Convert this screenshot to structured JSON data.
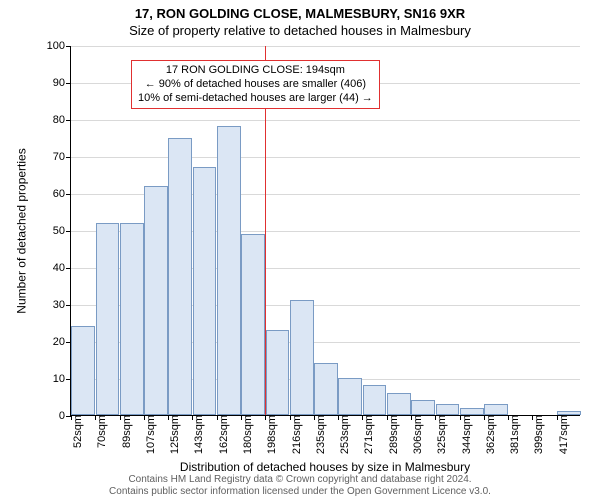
{
  "title": "17, RON GOLDING CLOSE, MALMESBURY, SN16 9XR",
  "subtitle": "Size of property relative to detached houses in Malmesbury",
  "y_label": "Number of detached properties",
  "x_label": "Distribution of detached houses by size in Malmesbury",
  "chart": {
    "type": "histogram",
    "background_color": "#ffffff",
    "grid_color": "#d9d9d9",
    "axis_color": "#000000",
    "bar_fill": "#dbe6f4",
    "bar_border": "#7a9bc4",
    "marker_color": "#e03030",
    "y": {
      "min": 0,
      "max": 100,
      "step": 10
    },
    "x_labels": [
      "52sqm",
      "70sqm",
      "89sqm",
      "107sqm",
      "125sqm",
      "143sqm",
      "162sqm",
      "180sqm",
      "198sqm",
      "216sqm",
      "235sqm",
      "253sqm",
      "271sqm",
      "289sqm",
      "306sqm",
      "325sqm",
      "344sqm",
      "362sqm",
      "381sqm",
      "399sqm",
      "417sqm"
    ],
    "values": [
      24,
      52,
      52,
      62,
      75,
      67,
      78,
      49,
      23,
      31,
      14,
      10,
      8,
      6,
      4,
      3,
      2,
      3,
      0,
      0,
      1
    ],
    "marker_index": 8,
    "annotation": {
      "line1": "17 RON GOLDING CLOSE: 194sqm",
      "line2": "← 90% of detached houses are smaller (406)",
      "line3": "10% of semi-detached houses are larger (44) →"
    }
  },
  "footer": {
    "line1": "Contains HM Land Registry data © Crown copyright and database right 2024.",
    "line2": "Contains public sector information licensed under the Open Government Licence v3.0."
  }
}
